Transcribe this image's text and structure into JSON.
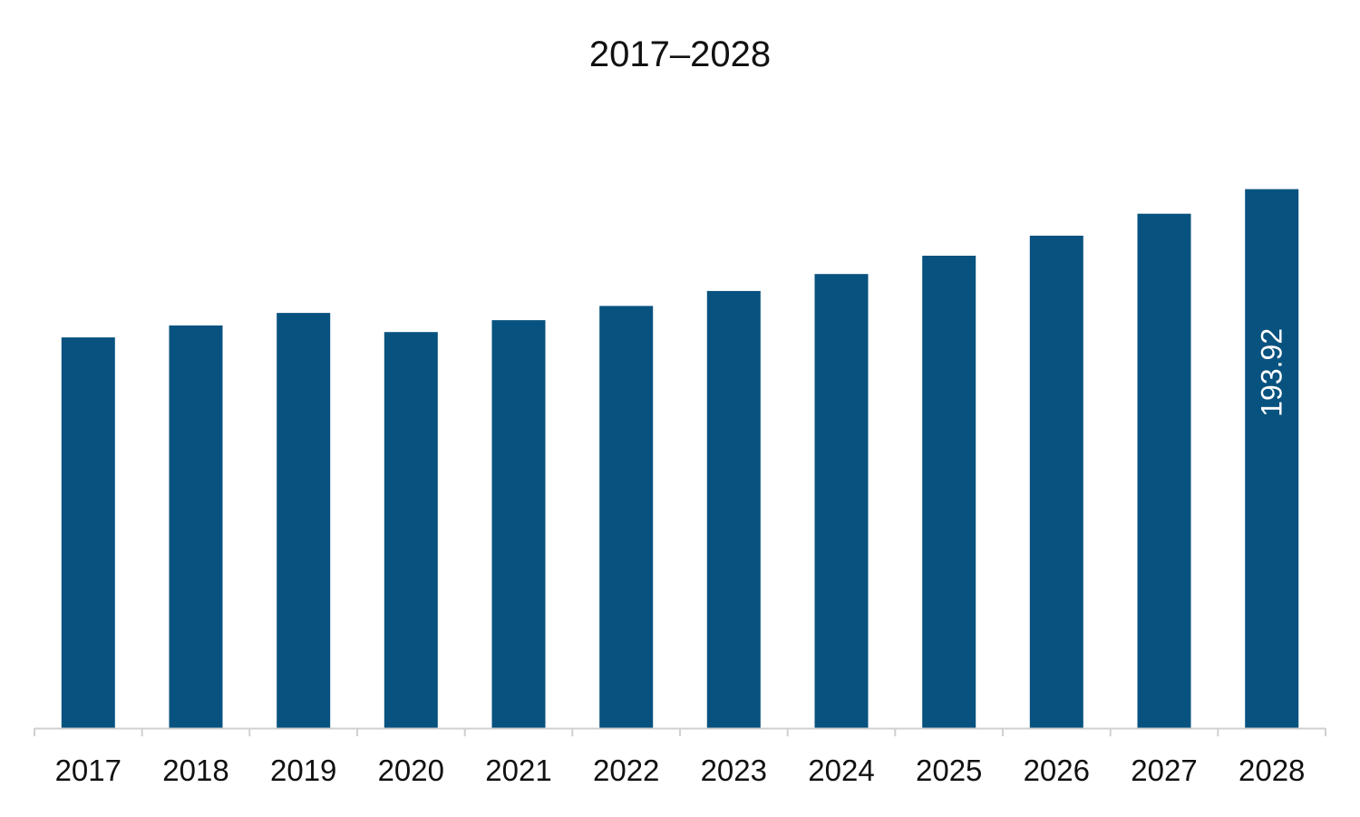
{
  "chart_data": {
    "type": "bar",
    "title": "2017–2028",
    "xlabel": "",
    "ylabel": "",
    "categories": [
      "2017",
      "2018",
      "2019",
      "2020",
      "2021",
      "2022",
      "2023",
      "2024",
      "2025",
      "2026",
      "2027",
      "2028"
    ],
    "values": [
      140.6,
      144.9,
      149.4,
      142.5,
      146.8,
      151.9,
      157.3,
      163.4,
      170.0,
      177.2,
      185.1,
      193.92
    ],
    "data_labels": [
      {
        "category": "2028",
        "text": "193.92"
      }
    ],
    "ylim": [
      0,
      200
    ],
    "grid": false,
    "legend": "none",
    "colors": {
      "bar": "#07527F",
      "axis": "#d0d0d0",
      "text": "#111111",
      "data_label": "#ffffff"
    }
  }
}
